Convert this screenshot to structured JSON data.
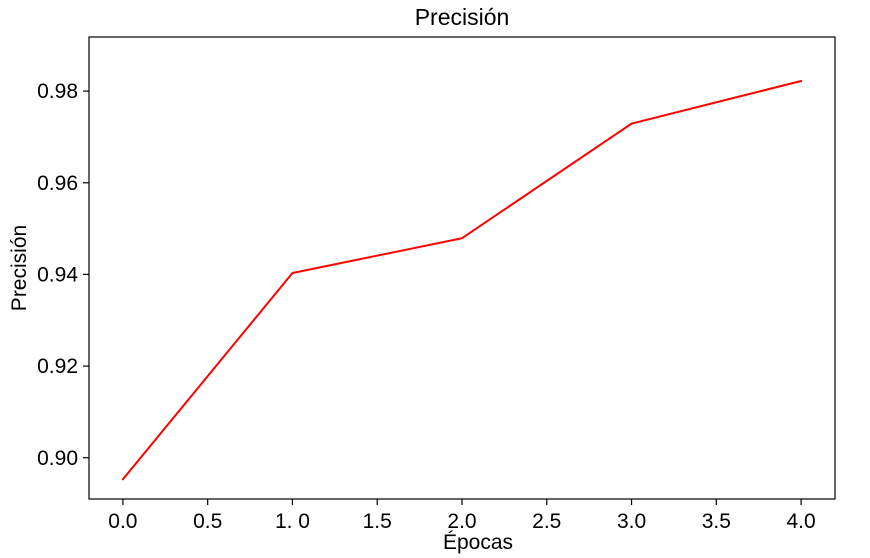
{
  "chart_data": {
    "type": "line",
    "title": "Precisión",
    "xlabel": "Épocas",
    "ylabel": "Precisión",
    "xlim": [
      -0.2,
      4.2
    ],
    "ylim": [
      0.891,
      0.9918
    ],
    "xticks": [
      0.0,
      0.5,
      1.0,
      1.5,
      2.0,
      2.5,
      3.0,
      3.5,
      4.0
    ],
    "xtick_labels": [
      "0.0",
      "0.5",
      "1. 0",
      "1.5",
      "2.0",
      "2.5",
      "3.0",
      "3.5",
      "4.0"
    ],
    "yticks": [
      0.9,
      0.92,
      0.94,
      0.96,
      0.98
    ],
    "ytick_labels": [
      "0.90",
      "0.92",
      "0.94",
      "0.96",
      "0.98"
    ],
    "grid": false,
    "series": [
      {
        "color": "#ff0000",
        "x": [
          0,
          1,
          2,
          3,
          4
        ],
        "y": [
          0.8953,
          0.9403,
          0.9479,
          0.9729,
          0.9822
        ]
      }
    ]
  }
}
